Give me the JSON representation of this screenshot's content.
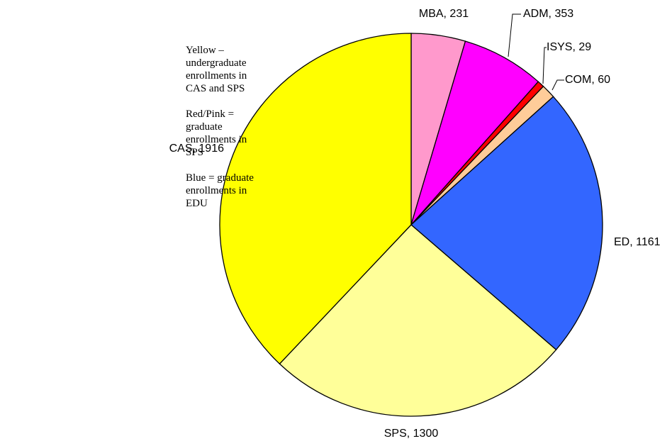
{
  "chart_data": {
    "type": "pie",
    "values": [
      231,
      353,
      29,
      60,
      1161,
      1300,
      1916
    ],
    "value_labels": [
      "MBA, 231",
      "ADM, 353",
      "ISYS, 29",
      "COM, 60",
      "ED, 1161",
      "SPS, 1300",
      "CAS, 1916"
    ],
    "colors": [
      "#ff99cc",
      "#ff00ff",
      "#ff0000",
      "#ffcc99",
      "#3366ff",
      "#ffff99",
      "#ffff00"
    ],
    "annotations": [
      "Yellow – undergraduate enrollments in CAS and SPS",
      "Red/Pink = graduate enrollments in SPS",
      "Blue = graduate enrollments in EDU"
    ]
  }
}
